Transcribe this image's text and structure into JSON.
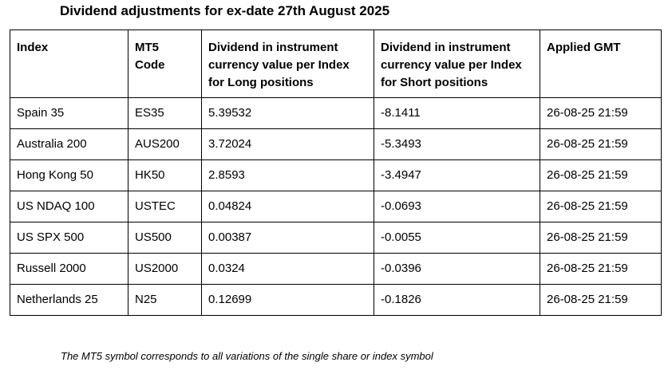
{
  "title": "Dividend adjustments for ex-date 27th August 2025",
  "table": {
    "headers": [
      {
        "lines": [
          "Index"
        ]
      },
      {
        "lines": [
          "MT5",
          "Code"
        ]
      },
      {
        "lines": [
          "Dividend in instrument",
          "currency value per Index",
          "for Long positions"
        ]
      },
      {
        "lines": [
          "Dividend in instrument",
          "currency value per Index",
          "for Short positions"
        ]
      },
      {
        "lines": [
          "Applied GMT"
        ]
      }
    ],
    "rows": [
      [
        "Spain 35",
        "ES35",
        "5.39532",
        "-8.1411",
        "26-08-25 21:59"
      ],
      [
        "Australia 200",
        "AUS200",
        "3.72024",
        "-5.3493",
        "26-08-25 21:59"
      ],
      [
        "Hong Kong 50",
        "HK50",
        "2.8593",
        "-3.4947",
        "26-08-25 21:59"
      ],
      [
        "US NDAQ 100",
        "USTEC",
        "0.04824",
        "-0.0693",
        "26-08-25 21:59"
      ],
      [
        "US SPX 500",
        "US500",
        "0.00387",
        "-0.0055",
        "26-08-25 21:59"
      ],
      [
        "Russell 2000",
        "US2000",
        "0.0324",
        "-0.0396",
        "26-08-25 21:59"
      ],
      [
        "Netherlands 25",
        "N25",
        "0.12699",
        "-0.1826",
        "26-08-25 21:59"
      ]
    ]
  },
  "footnote": "The MT5 symbol corresponds to all variations of the single share or index symbol"
}
